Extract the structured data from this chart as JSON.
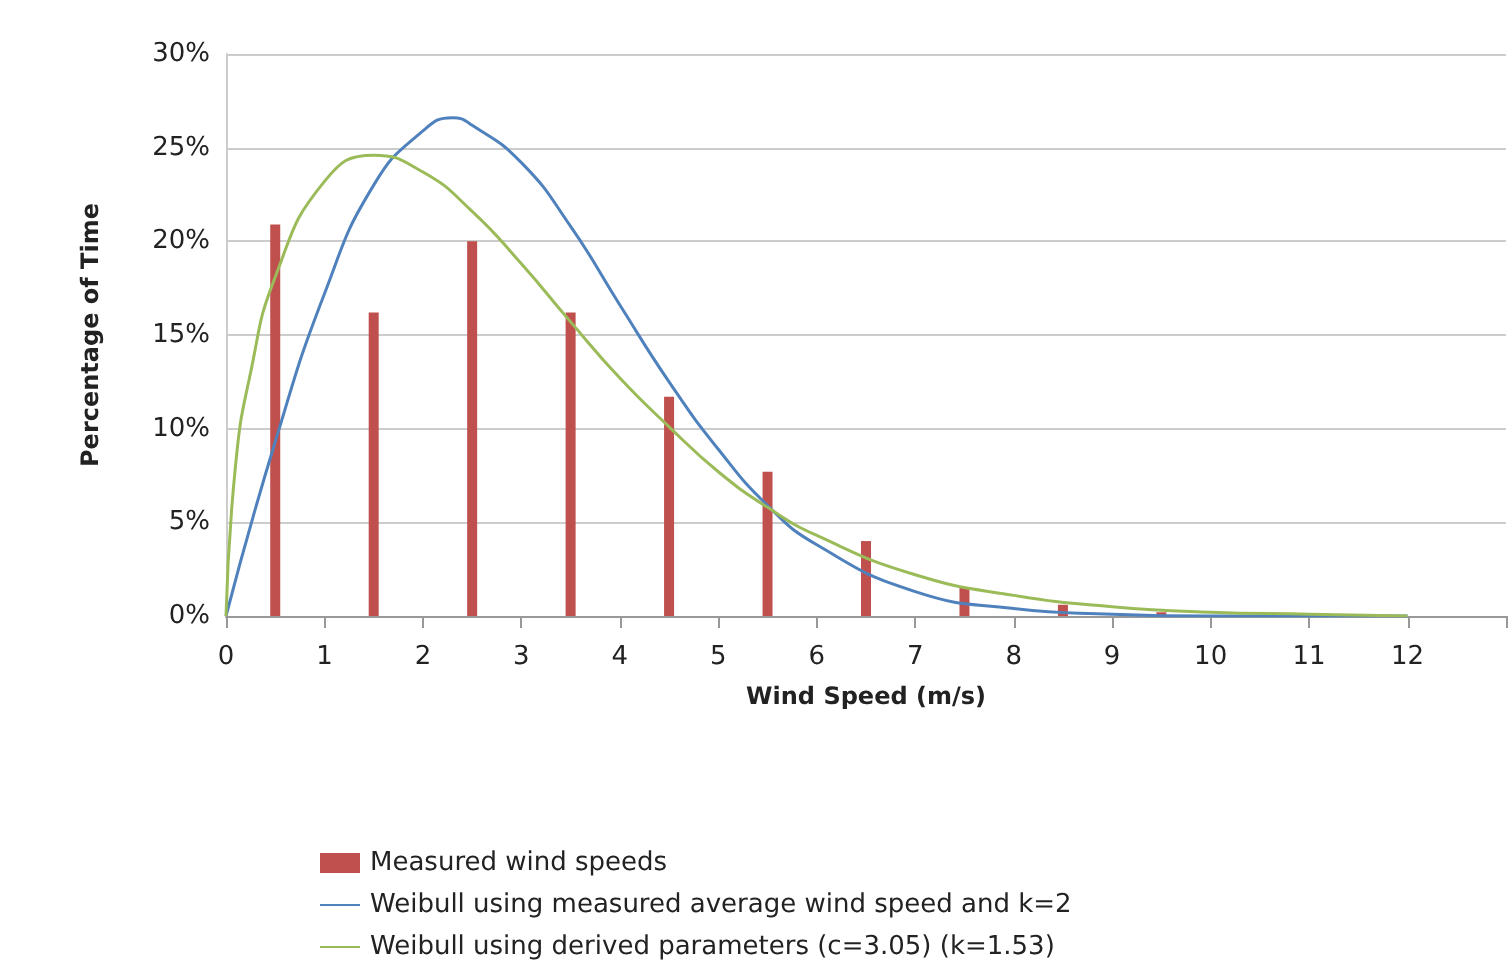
{
  "chart_data": {
    "type": "bar",
    "xlabel": "Wind Speed (m/s)",
    "ylabel": "Percentage of Time",
    "x": [
      0.5,
      1.5,
      2.5,
      3.5,
      4.5,
      5.5,
      6.5,
      7.5,
      8.5,
      9.5
    ],
    "series": [
      {
        "name": "Measured wind speeds",
        "color": "#c0504d",
        "values": [
          20.9,
          16.2,
          20.0,
          16.2,
          11.7,
          7.7,
          4.0,
          1.5,
          0.6,
          0.2
        ]
      },
      {
        "name": "Weibull using measured average wind speed and k=2",
        "type": "line",
        "color": "#4f81bd",
        "x": [
          0,
          0.5,
          1,
          1.5,
          2,
          2.3,
          2.5,
          3,
          3.5,
          4,
          4.5,
          5,
          5.5,
          6,
          7,
          8,
          9,
          10,
          11,
          12
        ],
        "values": [
          0,
          9.3,
          17.2,
          23.0,
          25.9,
          26.6,
          26.2,
          24.2,
          20.8,
          16.6,
          12.5,
          8.9,
          5.9,
          3.8,
          1.3,
          0.4,
          0.1,
          0,
          0,
          0
        ]
      },
      {
        "name": "Weibull using derived parameters (c=3.05) (k=1.53)",
        "type": "line",
        "color": "#9bbb59",
        "x": [
          0,
          0.1,
          0.25,
          0.5,
          1,
          1.5,
          2,
          2.5,
          3,
          3.5,
          4,
          4.5,
          5,
          5.5,
          6,
          7,
          8,
          9,
          10,
          11,
          12
        ],
        "values": [
          0,
          8.2,
          13.0,
          18.1,
          23.2,
          24.6,
          23.7,
          21.6,
          18.8,
          15.7,
          12.7,
          10.1,
          7.7,
          5.8,
          4.3,
          2.2,
          1.1,
          0.5,
          0.2,
          0.1,
          0
        ]
      }
    ],
    "xlim": [
      0,
      13
    ],
    "xticks": [
      0,
      1,
      2,
      3,
      4,
      5,
      6,
      7,
      8,
      9,
      10,
      11,
      12,
      {
        "value": 13,
        "label": null
      }
    ],
    "ylim": [
      0,
      30
    ],
    "yticks": [
      {
        "value": 0,
        "label": "0%"
      },
      {
        "value": 5,
        "label": "5%"
      },
      {
        "value": 10,
        "label": "10%"
      },
      {
        "value": 15,
        "label": "15%"
      },
      {
        "value": 20,
        "label": "20%"
      },
      {
        "value": 25,
        "label": "25%"
      },
      {
        "value": 30,
        "label": "30%"
      }
    ],
    "grid": "y",
    "legend": "bottom",
    "marker": "none",
    "line_style": "solid"
  }
}
